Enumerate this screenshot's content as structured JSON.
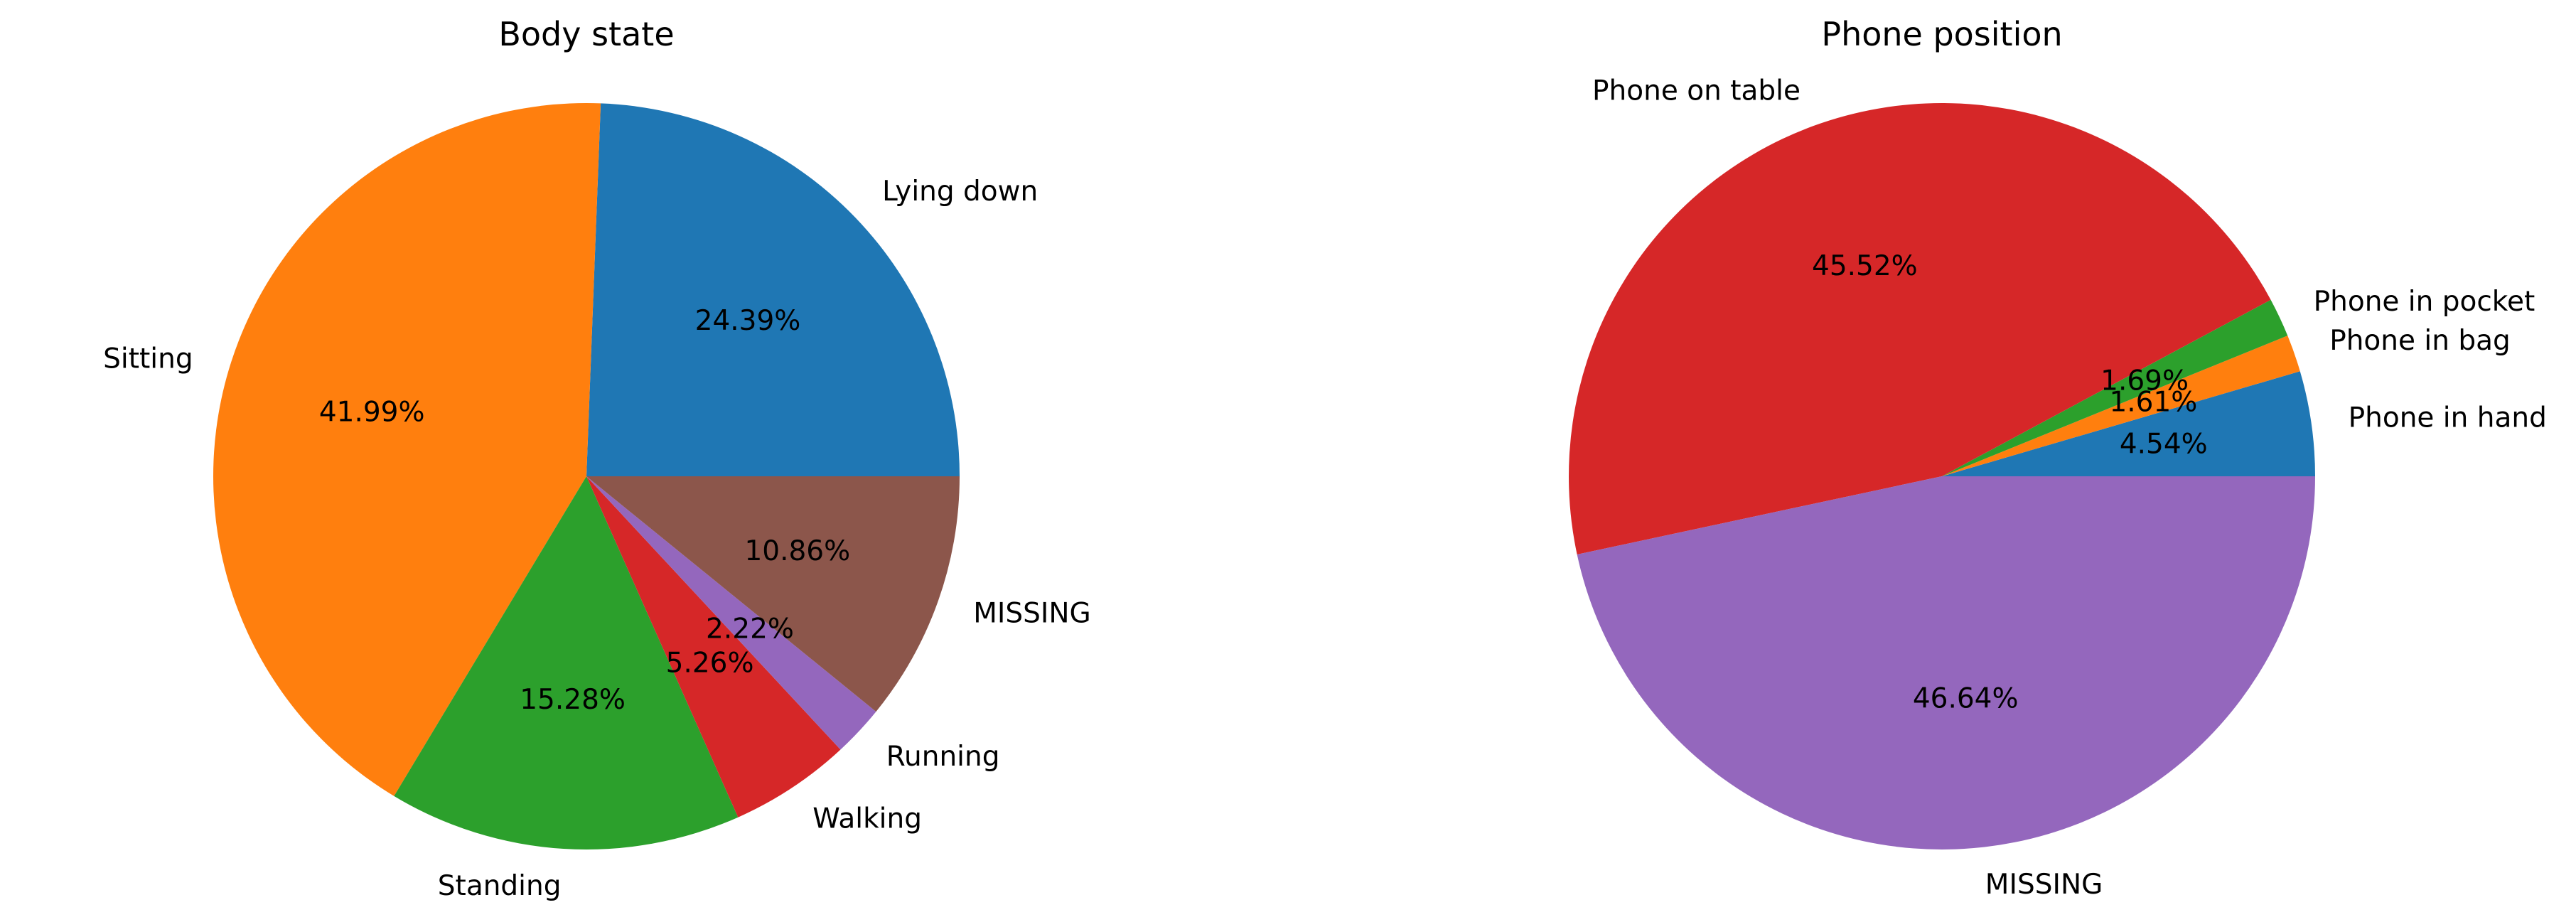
{
  "chart_data": [
    {
      "type": "pie",
      "title": "Body state",
      "start_angle_deg": 0,
      "direction": "counterclockwise",
      "slices": [
        {
          "label": "Lying down",
          "value": 24.39,
          "pct_label": "24.39%",
          "color": "#1f77b4"
        },
        {
          "label": "Sitting",
          "value": 41.99,
          "pct_label": "41.99%",
          "color": "#ff7f0e"
        },
        {
          "label": "Standing",
          "value": 15.28,
          "pct_label": "15.28%",
          "color": "#2ca02c"
        },
        {
          "label": "Walking",
          "value": 5.26,
          "pct_label": "5.26%",
          "color": "#d62728"
        },
        {
          "label": "Running",
          "value": 2.22,
          "pct_label": "2.22%",
          "color": "#9467bd"
        },
        {
          "label": "MISSING",
          "value": 10.86,
          "pct_label": "10.86%",
          "color": "#8c564b"
        }
      ]
    },
    {
      "type": "pie",
      "title": "Phone position",
      "start_angle_deg": 0,
      "direction": "counterclockwise",
      "slices": [
        {
          "label": "Phone in hand",
          "value": 4.54,
          "pct_label": "4.54%",
          "color": "#1f77b4"
        },
        {
          "label": "Phone in bag",
          "value": 1.61,
          "pct_label": "1.61%",
          "color": "#ff7f0e"
        },
        {
          "label": "Phone in pocket",
          "value": 1.69,
          "pct_label": "1.69%",
          "color": "#2ca02c"
        },
        {
          "label": "Phone on table",
          "value": 45.52,
          "pct_label": "45.52%",
          "color": "#d62728"
        },
        {
          "label": "MISSING",
          "value": 46.64,
          "pct_label": "46.64%",
          "color": "#9467bd"
        }
      ]
    }
  ]
}
